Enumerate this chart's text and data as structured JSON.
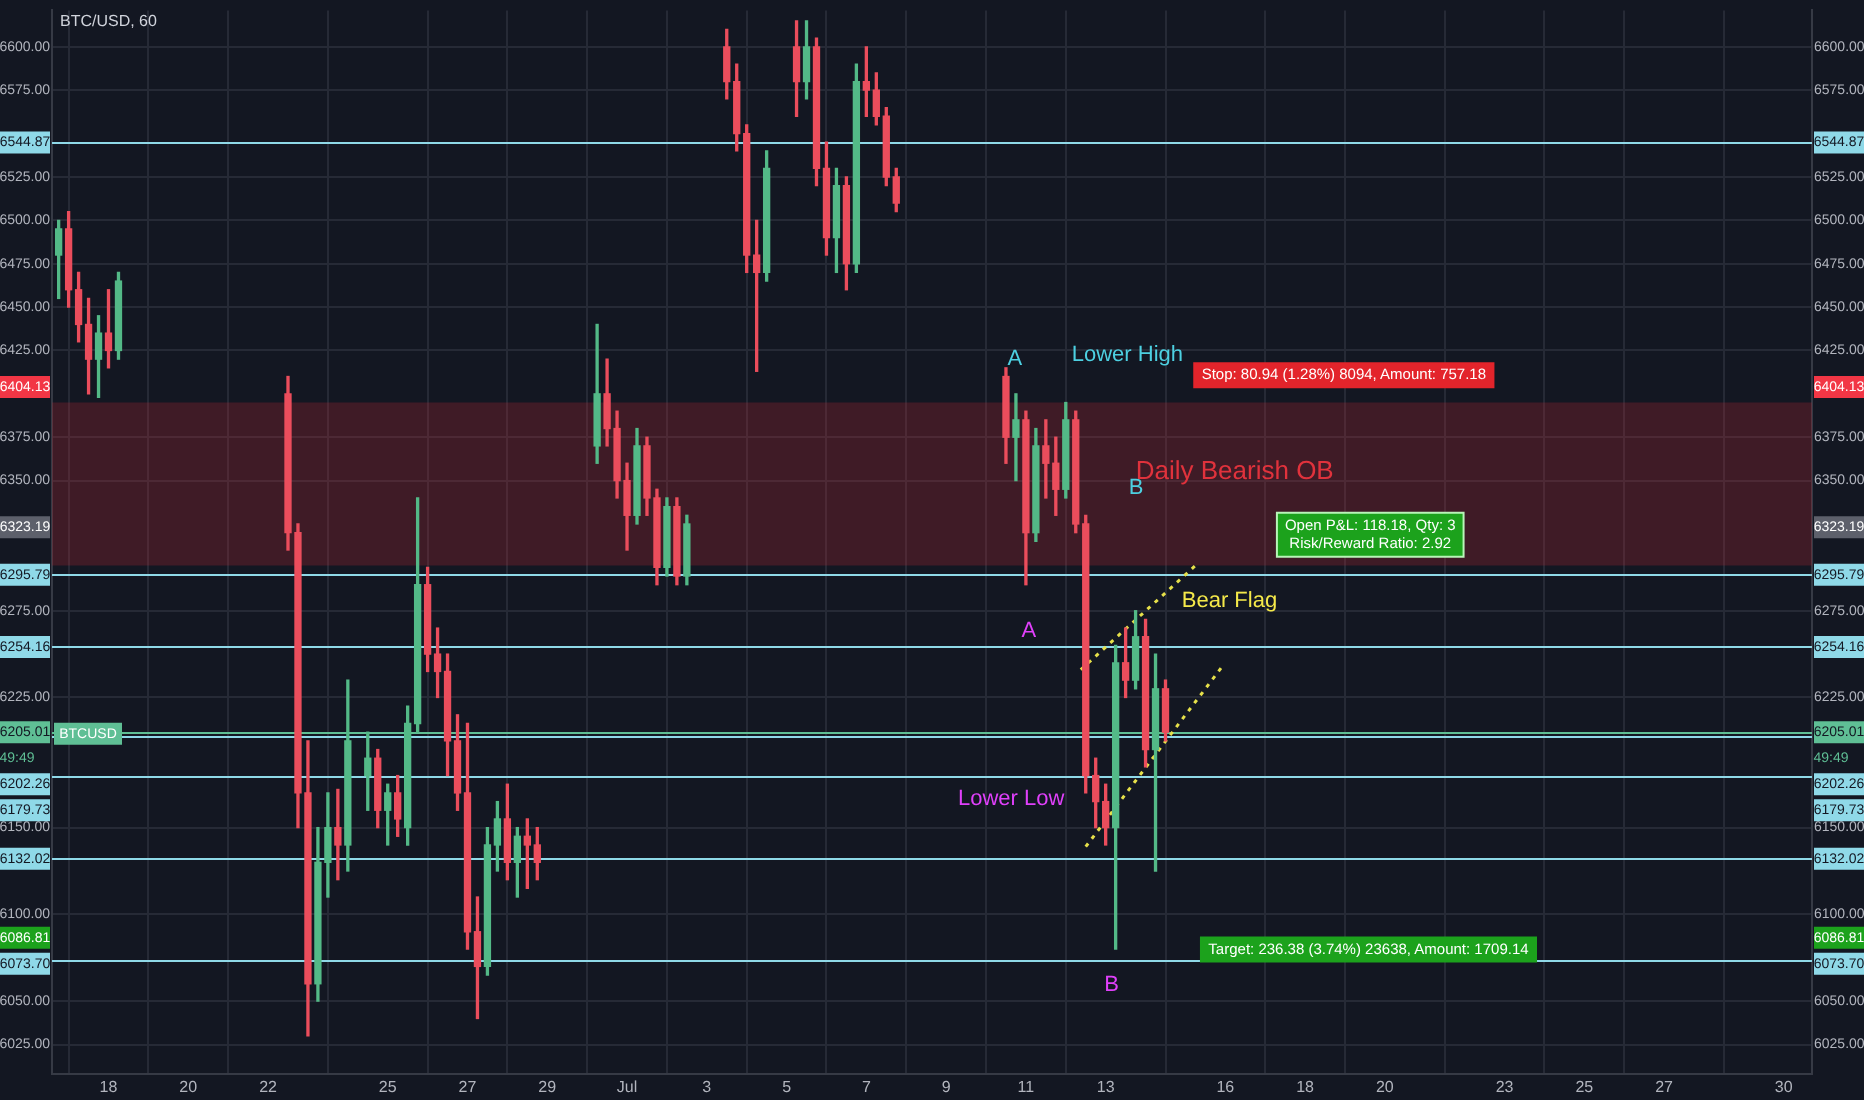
{
  "chart_data": {
    "type": "candlestick",
    "title": "BTC/USD, 60",
    "x": [
      "--06-16T18:00",
      "--06-17T00:00",
      "--06-17T06:00",
      "--06-17T12:00",
      "--06-17T18:00",
      "--06-18T00:00",
      "--06-18T06:00",
      "--06-22T12:00",
      "--06-22T18:00",
      "--06-23T00:00",
      "--06-23T06:00",
      "--06-23T12:00",
      "--06-23T18:00",
      "--06-24T00:00",
      "--06-24T12:00",
      "--06-24T18:00",
      "--06-25T00:00",
      "--06-25T06:00",
      "--06-25T12:00",
      "--06-25T18:00",
      "--06-26T00:00",
      "--06-26T06:00",
      "--06-26T12:00",
      "--06-26T18:00",
      "--06-27T00:00",
      "--06-27T06:00",
      "--06-27T12:00",
      "--06-27T18:00",
      "--06-28T00:00",
      "--06-28T06:00",
      "--06-28T12:00",
      "--06-28T18:00",
      "--06-30T06:00",
      "--06-30T12:00",
      "--06-30T18:00",
      "--07-01T00:00",
      "--07-01T06:00",
      "--07-01T12:00",
      "--07-01T18:00",
      "--07-02T00:00",
      "--07-02T06:00",
      "--07-02T12:00",
      "--07-03T12:00",
      "--07-03T18:00",
      "--07-04T00:00",
      "--07-04T06:00",
      "--07-04T12:00",
      "--07-05T06:00",
      "--07-05T12:00",
      "--07-05T18:00",
      "--07-06T00:00",
      "--07-06T06:00",
      "--07-06T12:00",
      "--07-06T18:00",
      "--07-07T00:00",
      "--07-07T06:00",
      "--07-07T12:00",
      "--07-07T18:00",
      "--07-10T12:00",
      "--07-10T18:00",
      "--07-11T00:00",
      "--07-11T06:00",
      "--07-11T12:00",
      "--07-11T18:00",
      "--07-12T00:00",
      "--07-12T06:00",
      "--07-12T12:00",
      "--07-12T18:00",
      "--07-13T00:00",
      "--07-13T06:00",
      "--07-13T12:00",
      "--07-13T18:00",
      "--07-14T00:00",
      "--07-14T06:00",
      "--07-14T12:00"
    ],
    "ohlc": [
      [
        6480,
        6500,
        6455,
        6495
      ],
      [
        6495,
        6505,
        6450,
        6460
      ],
      [
        6460,
        6470,
        6430,
        6440
      ],
      [
        6440,
        6455,
        6400,
        6420
      ],
      [
        6420,
        6445,
        6398,
        6435
      ],
      [
        6435,
        6460,
        6415,
        6425
      ],
      [
        6425,
        6470,
        6420,
        6465
      ],
      [
        6400,
        6410,
        6310,
        6320
      ],
      [
        6320,
        6325,
        6150,
        6170
      ],
      [
        6170,
        6200,
        6030,
        6060
      ],
      [
        6060,
        6150,
        6050,
        6130
      ],
      [
        6130,
        6170,
        6110,
        6150
      ],
      [
        6150,
        6172,
        6120,
        6140
      ],
      [
        6140,
        6235,
        6125,
        6200
      ],
      [
        6180,
        6205,
        6160,
        6190
      ],
      [
        6190,
        6195,
        6150,
        6160
      ],
      [
        6160,
        6175,
        6140,
        6170
      ],
      [
        6170,
        6180,
        6145,
        6155
      ],
      [
        6150,
        6220,
        6140,
        6210
      ],
      [
        6210,
        6340,
        6205,
        6290
      ],
      [
        6290,
        6300,
        6240,
        6250
      ],
      [
        6250,
        6265,
        6225,
        6240
      ],
      [
        6240,
        6250,
        6180,
        6200
      ],
      [
        6200,
        6215,
        6160,
        6170
      ],
      [
        6170,
        6210,
        6080,
        6090
      ],
      [
        6090,
        6110,
        6040,
        6070
      ],
      [
        6070,
        6150,
        6065,
        6140
      ],
      [
        6140,
        6165,
        6125,
        6155
      ],
      [
        6155,
        6175,
        6120,
        6130
      ],
      [
        6130,
        6150,
        6110,
        6145
      ],
      [
        6145,
        6155,
        6115,
        6140
      ],
      [
        6140,
        6150,
        6120,
        6130
      ],
      [
        6370,
        6440,
        6360,
        6400
      ],
      [
        6400,
        6420,
        6370,
        6380
      ],
      [
        6380,
        6390,
        6340,
        6350
      ],
      [
        6350,
        6360,
        6310,
        6330
      ],
      [
        6330,
        6380,
        6325,
        6370
      ],
      [
        6370,
        6375,
        6330,
        6340
      ],
      [
        6340,
        6345,
        6290,
        6300
      ],
      [
        6300,
        6340,
        6295,
        6335
      ],
      [
        6335,
        6340,
        6290,
        6295
      ],
      [
        6295,
        6330,
        6290,
        6325
      ],
      [
        6600,
        6610,
        6570,
        6580
      ],
      [
        6580,
        6590,
        6540,
        6550
      ],
      [
        6550,
        6555,
        6470,
        6480
      ],
      [
        6480,
        6500,
        6413,
        6470
      ],
      [
        6470,
        6540,
        6465,
        6530
      ],
      [
        6600,
        6615,
        6560,
        6580
      ],
      [
        6580,
        6615,
        6570,
        6600
      ],
      [
        6600,
        6605,
        6520,
        6530
      ],
      [
        6530,
        6545,
        6480,
        6490
      ],
      [
        6490,
        6530,
        6470,
        6520
      ],
      [
        6520,
        6525,
        6460,
        6475
      ],
      [
        6475,
        6590,
        6470,
        6580
      ],
      [
        6580,
        6600,
        6560,
        6575
      ],
      [
        6575,
        6585,
        6555,
        6560
      ],
      [
        6560,
        6565,
        6520,
        6525
      ],
      [
        6525,
        6530,
        6505,
        6510
      ],
      [
        6410,
        6415,
        6360,
        6375
      ],
      [
        6375,
        6400,
        6350,
        6385
      ],
      [
        6385,
        6390,
        6290,
        6320
      ],
      [
        6320,
        6380,
        6315,
        6370
      ],
      [
        6370,
        6385,
        6340,
        6360
      ],
      [
        6360,
        6375,
        6330,
        6345
      ],
      [
        6345,
        6395,
        6340,
        6385
      ],
      [
        6385,
        6390,
        6320,
        6325
      ],
      [
        6325,
        6330,
        6170,
        6180
      ],
      [
        6180,
        6190,
        6150,
        6165
      ],
      [
        6165,
        6175,
        6140,
        6150
      ],
      [
        6150,
        6255,
        6080,
        6245
      ],
      [
        6245,
        6265,
        6225,
        6235
      ],
      [
        6235,
        6275,
        6230,
        6260
      ],
      [
        6260,
        6270,
        6185,
        6195
      ],
      [
        6195,
        6250,
        6125,
        6230
      ],
      [
        6230,
        6235,
        6200,
        6205.01
      ]
    ],
    "series": [
      {
        "type": "line",
        "color": "#e6e04a",
        "line_style": "dotted",
        "x": [
          "--07-12T09:00",
          "--07-15T06:00"
        ],
        "values": [
          6241,
          6301
        ]
      },
      {
        "type": "line",
        "color": "#e6e04a",
        "line_style": "dotted",
        "x": [
          "--07-12T12:00",
          "--07-15T23:00"
        ],
        "values": [
          6139,
          6244
        ]
      }
    ],
    "xlim": [
      "--06-16T14:00",
      "--07-30T17:00"
    ],
    "xticks": [
      {
        "value": "--06-18",
        "label": "18"
      },
      {
        "value": "--06-20",
        "label": "20"
      },
      {
        "value": "--06-22",
        "label": "22"
      },
      {
        "value": "--06-25",
        "label": "25"
      },
      {
        "value": "--06-27",
        "label": "27"
      },
      {
        "value": "--06-29",
        "label": "29"
      },
      {
        "value": "--07-01",
        "label": "Jul"
      },
      {
        "value": "--07-03",
        "label": "3"
      },
      {
        "value": "--07-05",
        "label": "5"
      },
      {
        "value": "--07-07",
        "label": "7"
      },
      {
        "value": "--07-09",
        "label": "9"
      },
      {
        "value": "--07-11",
        "label": "11"
      },
      {
        "value": "--07-13",
        "label": "13"
      },
      {
        "value": "--07-16",
        "label": "16"
      },
      {
        "value": "--07-18",
        "label": "18"
      },
      {
        "value": "--07-20",
        "label": "20"
      },
      {
        "value": "--07-23",
        "label": "23"
      },
      {
        "value": "--07-25",
        "label": "25"
      },
      {
        "value": "--07-27",
        "label": "27"
      },
      {
        "value": "--07-30",
        "label": "30"
      }
    ],
    "ylim": [
      6008,
      6621
    ],
    "yticks": [
      {
        "value": 6025,
        "label": "6025.00"
      },
      {
        "value": 6050,
        "label": "6050.00"
      },
      {
        "value": 6100,
        "label": "6100.00"
      },
      {
        "value": 6150,
        "label": "6150.00"
      },
      {
        "value": 6225,
        "label": "6225.00"
      },
      {
        "value": 6275,
        "label": "6275.00"
      },
      {
        "value": 6350,
        "label": "6350.00"
      },
      {
        "value": 6375,
        "label": "6375.00"
      },
      {
        "value": 6425,
        "label": "6425.00"
      },
      {
        "value": 6450,
        "label": "6450.00"
      },
      {
        "value": 6475,
        "label": "6475.00"
      },
      {
        "value": 6500,
        "label": "6500.00"
      },
      {
        "value": 6525,
        "label": "6525.00"
      },
      {
        "value": 6575,
        "label": "6575.00"
      },
      {
        "value": 6600,
        "label": "6600.00"
      }
    ],
    "y2lim": [
      6008,
      6621
    ],
    "y2ticks": [
      {
        "value": 6025,
        "label": "6025.00"
      },
      {
        "value": 6050,
        "label": "6050.00"
      },
      {
        "value": 6100,
        "label": "6100.00"
      },
      {
        "value": 6150,
        "label": "6150.00"
      },
      {
        "value": 6225,
        "label": "6225.00"
      },
      {
        "value": 6275,
        "label": "6275.00"
      },
      {
        "value": 6350,
        "label": "6350.00"
      },
      {
        "value": 6375,
        "label": "6375.00"
      },
      {
        "value": 6425,
        "label": "6425.00"
      },
      {
        "value": 6450,
        "label": "6450.00"
      },
      {
        "value": 6475,
        "label": "6475.00"
      },
      {
        "value": 6500,
        "label": "6500.00"
      },
      {
        "value": 6525,
        "label": "6525.00"
      },
      {
        "value": 6575,
        "label": "6575.00"
      },
      {
        "value": 6600,
        "label": "6600.00"
      }
    ],
    "grid": true,
    "ref_lines": [
      {
        "axis": "y",
        "value": 6544.87,
        "label": "6544.87",
        "color": "#8fd9e8"
      },
      {
        "axis": "y",
        "value": 6295.79,
        "label": "6295.79",
        "color": "#8fd9e8"
      },
      {
        "axis": "y",
        "value": 6254.16,
        "label": "6254.16",
        "color": "#8fd9e8"
      },
      {
        "axis": "y",
        "value": 6205.01,
        "label": "6205.01",
        "color": "#5fbf95"
      },
      {
        "axis": "y",
        "value": 6202.26,
        "label": "6202.26",
        "color": "#8fd9e8"
      },
      {
        "axis": "y",
        "value": 6179.73,
        "label": "6179.73",
        "color": "#8fd9e8"
      },
      {
        "axis": "y",
        "value": 6132.02,
        "label": "6132.02",
        "color": "#8fd9e8"
      },
      {
        "axis": "y",
        "value": 6073.7,
        "label": "6073.70",
        "color": "#8fd9e8"
      }
    ],
    "bands": [
      {
        "axis": "y",
        "from": 6301,
        "to": 6395,
        "label": "Daily Bearish OB",
        "color": "#b22833"
      }
    ],
    "annotations": [
      "A",
      "Lower High",
      "B",
      "A",
      "Bear Flag",
      "Lower Low",
      "B",
      "Stop: 80.94 (1.28%) 8094, Amount: 757.18",
      "Open P&L: 118.18, Qty: 3\nRisk/Reward Ratio: 2.92",
      "Target: 236.38 (3.74%) 23638, Amount: 1709.14",
      "6404.13",
      "6323.19",
      "6086.81",
      "BTCUSD",
      "49:49"
    ]
  }
}
